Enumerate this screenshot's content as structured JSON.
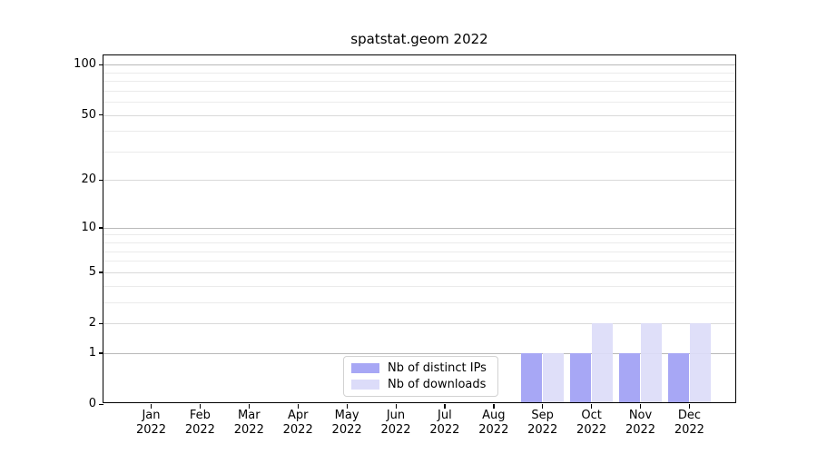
{
  "chart_data": {
    "type": "bar",
    "title": "spatstat.geom 2022",
    "categories": [
      "Jan\n2022",
      "Feb\n2022",
      "Mar\n2022",
      "Apr\n2022",
      "May\n2022",
      "Jun\n2022",
      "Jul\n2022",
      "Aug\n2022",
      "Sep\n2022",
      "Oct\n2022",
      "Nov\n2022",
      "Dec\n2022"
    ],
    "series": [
      {
        "name": "Nb of distinct IPs",
        "color": "#a7a7f5",
        "values": [
          0,
          0,
          0,
          0,
          0,
          0,
          0,
          0,
          1,
          1,
          1,
          1
        ]
      },
      {
        "name": "Nb of downloads",
        "color": "#dcdcf9",
        "values": [
          0,
          0,
          0,
          0,
          0,
          0,
          0,
          0,
          1,
          2,
          2,
          2
        ]
      }
    ],
    "xlabel": "",
    "ylabel": "",
    "yscale": "log1p",
    "ylim": [
      0,
      112
    ],
    "yticks": [
      0,
      1,
      2,
      5,
      10,
      20,
      50,
      100
    ],
    "decade_gridlines": [
      1,
      10,
      100
    ],
    "mid_gridlines": [
      2,
      5,
      20,
      50
    ],
    "minor_gridlines": [
      3,
      4,
      6,
      7,
      8,
      9,
      30,
      40,
      60,
      70,
      80,
      90
    ],
    "grid": "horizontal",
    "legend_position": "lower center",
    "colors": {
      "spine": "#000000",
      "major_grid": "#b9b9b9",
      "minor_grid": "#ebebeb"
    }
  }
}
